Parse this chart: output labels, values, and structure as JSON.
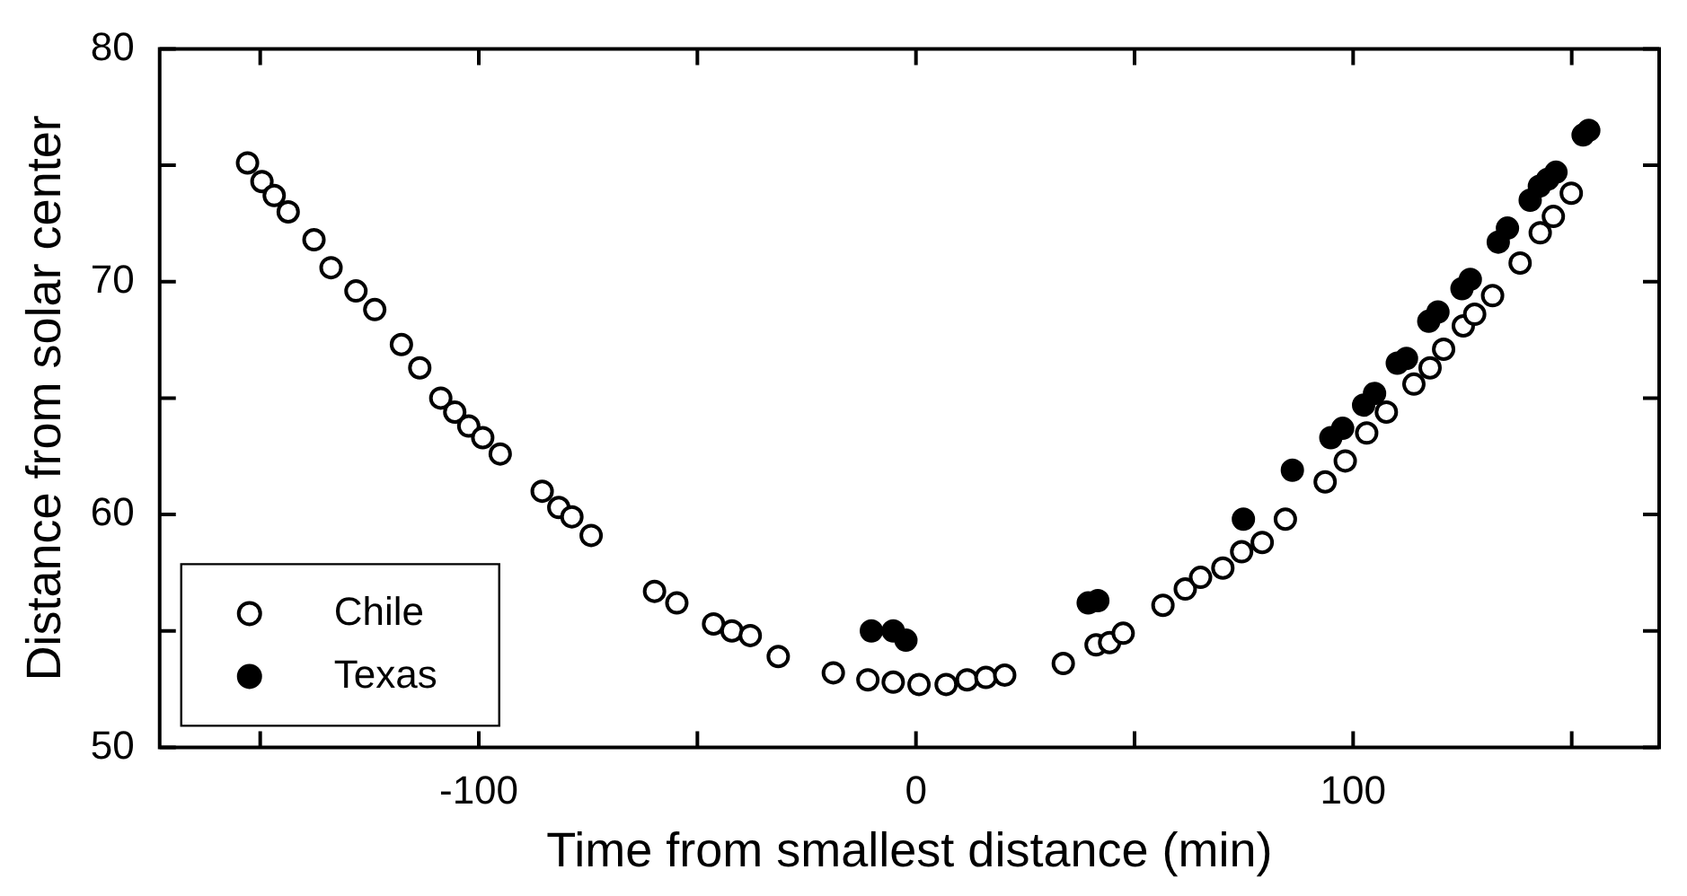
{
  "chart_data": {
    "type": "scatter",
    "xlabel": "Time from smallest distance (min)",
    "ylabel": "Distance from solar center",
    "xlim": [
      -173,
      170
    ],
    "ylim": [
      50,
      80
    ],
    "xticks": [
      {
        "value": -150,
        "label": null
      },
      -100,
      {
        "value": -50,
        "label": null
      },
      0,
      {
        "value": 50,
        "label": null
      },
      100,
      {
        "value": 150,
        "label": null
      }
    ],
    "yticks": [
      50,
      {
        "value": 55,
        "label": null
      },
      60,
      {
        "value": 65,
        "label": null
      },
      70,
      {
        "value": 75,
        "label": null
      },
      80
    ],
    "grid": false,
    "legend": "bottom left",
    "marker": "circle",
    "series": [
      {
        "name": "Chile",
        "color": "#ffffff",
        "x": [
          -152.9,
          -149.6,
          -146.8,
          -143.6,
          -137.7,
          -133.8,
          -128.1,
          -123.8,
          -117.7,
          -113.5,
          -108.7,
          -105.5,
          -102.3,
          -99.1,
          -95.1,
          -85.5,
          -81.7,
          -78.7,
          -74.3,
          -59.8,
          -54.7,
          -46.3,
          -42.1,
          -37.9,
          -31.5,
          -18.9,
          -11.0,
          -5.2,
          0.7,
          6.9,
          11.7,
          16.0,
          20.3,
          33.7,
          41.2,
          44.3,
          47.4,
          56.5,
          61.6,
          65.1,
          70.2,
          74.5,
          79.2,
          84.5,
          93.6,
          98.2,
          103.1,
          107.6,
          113.9,
          117.6,
          120.7,
          125.2,
          127.8,
          131.9,
          138.2,
          142.8,
          145.8,
          149.9
        ],
        "values": [
          75.1,
          74.3,
          73.7,
          73.0,
          71.8,
          70.6,
          69.6,
          68.8,
          67.3,
          66.3,
          65.0,
          64.4,
          63.8,
          63.3,
          62.6,
          61.0,
          60.3,
          59.9,
          59.1,
          56.7,
          56.2,
          55.3,
          55.0,
          54.8,
          53.9,
          53.2,
          52.9,
          52.8,
          52.7,
          52.7,
          52.9,
          53.0,
          53.1,
          53.6,
          54.4,
          54.5,
          54.9,
          56.1,
          56.8,
          57.3,
          57.7,
          58.4,
          58.8,
          59.8,
          61.4,
          62.3,
          63.5,
          64.4,
          65.6,
          66.3,
          67.1,
          68.1,
          68.6,
          69.4,
          70.8,
          72.1,
          72.8,
          73.8
        ]
      },
      {
        "name": "Texas",
        "color": "#000000",
        "x": [
          -10.2,
          -5.2,
          -2.3,
          39.4,
          41.6,
          74.9,
          86.1,
          94.9,
          97.6,
          102.4,
          104.9,
          110.1,
          112.2,
          117.3,
          119.4,
          124.9,
          126.8,
          133.2,
          135.3,
          140.5,
          142.6,
          144.5,
          146.4,
          152.6,
          153.9
        ],
        "values": [
          55.0,
          55.0,
          54.6,
          56.2,
          56.3,
          59.8,
          61.9,
          63.3,
          63.7,
          64.7,
          65.2,
          66.5,
          66.7,
          68.3,
          68.7,
          69.7,
          70.1,
          71.7,
          72.3,
          73.5,
          74.1,
          74.4,
          74.7,
          76.3,
          76.5
        ]
      }
    ]
  }
}
